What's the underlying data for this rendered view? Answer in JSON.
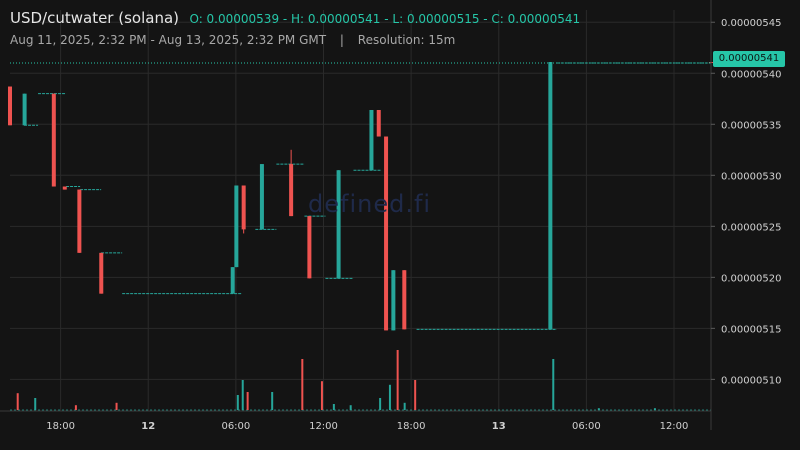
{
  "header": {
    "symbol": "USD/cutwater (solana)",
    "ohlc": "O: 0.00000539 - H: 0.00000541 - L: 0.00000515 - C: 0.00000541",
    "date_range": "Aug 11, 2025, 2:32 PM - Aug 13, 2025, 2:32 PM GMT",
    "separator": "|",
    "resolution": "Resolution: 15m"
  },
  "watermark": "defined.fi",
  "colors": {
    "background": "#141414",
    "up": "#26a69a",
    "down": "#ef5350",
    "grid": "#2a2a2a",
    "axis_text": "#d0d0d0",
    "last_price_line": "#26c6a8"
  },
  "chart_data": {
    "type": "candlestick",
    "ylim": [
      5.069e-06,
      5.462e-06
    ],
    "y_ticks": [
      "0.00000545",
      "0.00000540",
      "0.00000535",
      "0.00000530",
      "0.00000525",
      "0.00000520",
      "0.00000515",
      "0.00000510"
    ],
    "x_ticks": [
      "18:00",
      "12",
      "06:00",
      "12:00",
      "18:00",
      "13",
      "06:00",
      "12:00"
    ],
    "x_ticks_bold": [
      "12",
      "13"
    ],
    "last_price": "0.00000541",
    "grid": true,
    "candles": [
      {
        "t": "Aug 11 14:32",
        "o": 5.387,
        "h": 5.387,
        "l": 5.349,
        "c": 5.349
      },
      {
        "t": "Aug 11 15:32",
        "o": 5.349,
        "h": 5.38,
        "l": 5.349,
        "c": 5.38
      },
      {
        "t": "Aug 11 17:32",
        "o": 5.38,
        "h": 5.38,
        "l": 5.289,
        "c": 5.289
      },
      {
        "t": "Aug 11 18:17",
        "o": 5.289,
        "h": 5.289,
        "l": 5.286,
        "c": 5.286
      },
      {
        "t": "Aug 11 19:17",
        "o": 5.286,
        "h": 5.286,
        "l": 5.224,
        "c": 5.224
      },
      {
        "t": "Aug 11 20:47",
        "o": 5.224,
        "h": 5.224,
        "l": 5.184,
        "c": 5.184
      },
      {
        "t": "Aug 12 05:47",
        "o": 5.184,
        "h": 5.21,
        "l": 5.184,
        "c": 5.21
      },
      {
        "t": "Aug 12 06:02",
        "o": 5.21,
        "h": 5.29,
        "l": 5.21,
        "c": 5.29
      },
      {
        "t": "Aug 12 06:32",
        "o": 5.29,
        "h": 5.29,
        "l": 5.243,
        "c": 5.247
      },
      {
        "t": "Aug 12 07:47",
        "o": 5.247,
        "h": 5.311,
        "l": 5.247,
        "c": 5.311
      },
      {
        "t": "Aug 12 09:47",
        "o": 5.311,
        "h": 5.325,
        "l": 5.26,
        "c": 5.26
      },
      {
        "t": "Aug 12 11:02",
        "o": 5.26,
        "h": 5.26,
        "l": 5.199,
        "c": 5.199
      },
      {
        "t": "Aug 12 13:02",
        "o": 5.199,
        "h": 5.305,
        "l": 5.199,
        "c": 5.305
      },
      {
        "t": "Aug 12 15:17",
        "o": 5.305,
        "h": 5.364,
        "l": 5.305,
        "c": 5.364
      },
      {
        "t": "Aug 12 15:47",
        "o": 5.364,
        "h": 5.364,
        "l": 5.338,
        "c": 5.338
      },
      {
        "t": "Aug 12 16:17",
        "o": 5.338,
        "h": 5.338,
        "l": 5.148,
        "c": 5.148
      },
      {
        "t": "Aug 12 16:47",
        "o": 5.148,
        "h": 5.207,
        "l": 5.148,
        "c": 5.207
      },
      {
        "t": "Aug 12 17:32",
        "o": 5.207,
        "h": 5.207,
        "l": 5.149,
        "c": 5.149
      },
      {
        "t": "Aug 13 03:32",
        "o": 5.149,
        "h": 5.411,
        "l": 5.149,
        "c": 5.411
      },
      {
        "t": "Aug 13 14:32",
        "o": 5.411,
        "h": 5.411,
        "l": 5.41,
        "c": 5.41
      }
    ],
    "flat_segments": [
      {
        "y": 5.349,
        "x1": 0.02,
        "x2": 0.04
      },
      {
        "y": 5.38,
        "x1": 0.04,
        "x2": 0.08
      },
      {
        "y": 5.289,
        "x1": 0.08,
        "x2": 0.1
      },
      {
        "y": 5.286,
        "x1": 0.1,
        "x2": 0.13
      },
      {
        "y": 5.224,
        "x1": 0.13,
        "x2": 0.16
      },
      {
        "y": 5.184,
        "x1": 0.16,
        "x2": 0.33
      },
      {
        "y": 5.247,
        "x1": 0.35,
        "x2": 0.38
      },
      {
        "y": 5.311,
        "x1": 0.38,
        "x2": 0.42
      },
      {
        "y": 5.26,
        "x1": 0.42,
        "x2": 0.45
      },
      {
        "y": 5.199,
        "x1": 0.45,
        "x2": 0.49
      },
      {
        "y": 5.305,
        "x1": 0.49,
        "x2": 0.53
      },
      {
        "y": 5.149,
        "x1": 0.58,
        "x2": 0.78
      },
      {
        "y": 5.41,
        "x1": 0.78,
        "x2": 1.0
      }
    ],
    "volume": [
      {
        "x": 0.011,
        "v": 0.28,
        "up": false
      },
      {
        "x": 0.036,
        "v": 0.2,
        "up": true
      },
      {
        "x": 0.094,
        "v": 0.08,
        "up": false
      },
      {
        "x": 0.152,
        "v": 0.12,
        "up": false
      },
      {
        "x": 0.325,
        "v": 0.25,
        "up": true
      },
      {
        "x": 0.332,
        "v": 0.5,
        "up": true
      },
      {
        "x": 0.339,
        "v": 0.3,
        "up": false
      },
      {
        "x": 0.374,
        "v": 0.3,
        "up": true
      },
      {
        "x": 0.417,
        "v": 0.85,
        "up": false
      },
      {
        "x": 0.445,
        "v": 0.48,
        "up": false
      },
      {
        "x": 0.462,
        "v": 0.1,
        "up": true
      },
      {
        "x": 0.486,
        "v": 0.08,
        "up": true
      },
      {
        "x": 0.528,
        "v": 0.2,
        "up": true
      },
      {
        "x": 0.542,
        "v": 0.42,
        "up": true
      },
      {
        "x": 0.553,
        "v": 1.0,
        "up": false
      },
      {
        "x": 0.563,
        "v": 0.12,
        "up": true
      },
      {
        "x": 0.578,
        "v": 0.5,
        "up": false
      },
      {
        "x": 0.775,
        "v": 0.85,
        "up": true
      },
      {
        "x": 0.84,
        "v": 0.03,
        "up": true
      },
      {
        "x": 0.92,
        "v": 0.03,
        "up": true
      }
    ]
  }
}
